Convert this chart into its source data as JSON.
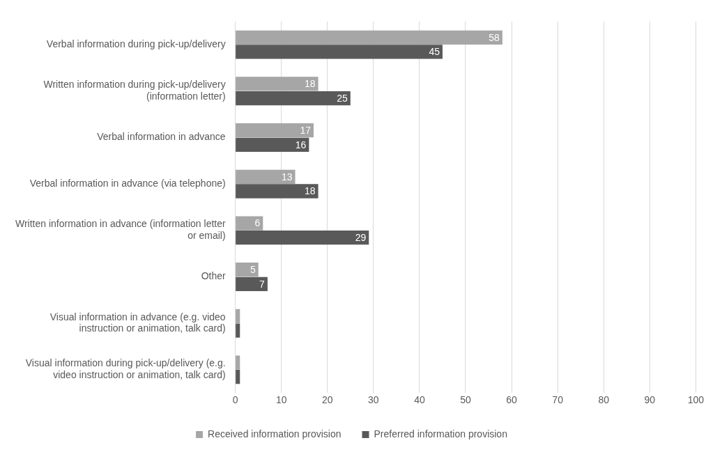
{
  "chart_data": {
    "type": "bar",
    "orientation": "horizontal",
    "categories": [
      "Verbal information during pick-up/delivery",
      "Written information during pick-up/delivery (information letter)",
      "Verbal information in advance",
      "Verbal information in advance (via telephone)",
      "Written information in advance (information letter or email)",
      "Other",
      "Visual information in advance (e.g. video instruction or animation, talk card)",
      "Visual information during pick-up/delivery (e.g. video instruction or animation, talk card)"
    ],
    "series": [
      {
        "name": "Received information provision",
        "color": "#a6a6a6",
        "values": [
          58,
          18,
          17,
          13,
          6,
          5,
          1,
          1
        ],
        "value_labels": [
          "58",
          "18",
          "17",
          "13",
          "6",
          "5",
          null,
          null
        ]
      },
      {
        "name": "Preferred information provision",
        "color": "#595959",
        "values": [
          45,
          25,
          16,
          18,
          29,
          7,
          1,
          1
        ],
        "value_labels": [
          "45",
          "25",
          "16",
          "18",
          "29",
          "7",
          null,
          null
        ]
      }
    ],
    "xlim": [
      0,
      100
    ],
    "xticks": [
      0,
      10,
      20,
      30,
      40,
      50,
      60,
      70,
      80,
      90,
      100
    ],
    "grid": "x",
    "legend": "bottom"
  }
}
